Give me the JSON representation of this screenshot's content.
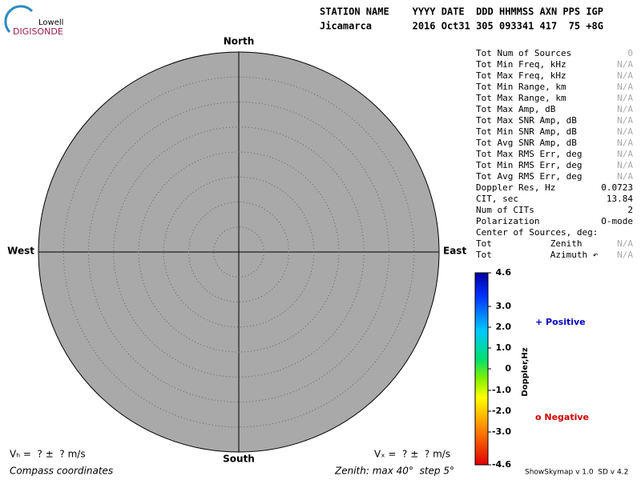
{
  "logo": {
    "top": "Lowell",
    "bottom": "DIGISONDE"
  },
  "header": {
    "labels_line": "STATION NAME    YYYY DATE  DDD HHMMSS AXN PPS IGP",
    "values_line": "Jicamarca       2016 Oct31 305 093341 417  75 +8G"
  },
  "compass": {
    "north": "North",
    "south": "South",
    "west": "West",
    "east": "East"
  },
  "stats": [
    [
      "Tot Num of Sources",
      "0"
    ],
    [
      "Tot Min Freq, kHz",
      "N/A"
    ],
    [
      "Tot Max Freq, kHz",
      "N/A"
    ],
    [
      "Tot Min Range, km",
      "N/A"
    ],
    [
      "Tot Max Range, km",
      "N/A"
    ],
    [
      "Tot Max Amp, dB",
      "N/A"
    ],
    [
      "Tot Max SNR Amp, dB",
      "N/A"
    ],
    [
      "Tot Min SNR Amp, dB",
      "N/A"
    ],
    [
      "Tot Avg SNR Amp, dB",
      "N/A"
    ],
    [
      "Tot Max RMS Err, deg",
      "N/A"
    ],
    [
      "Tot Min RMS Err, deg",
      "N/A"
    ],
    [
      "Tot Avg RMS Err, deg",
      "N/A"
    ],
    [
      "Doppler Res, Hz",
      "0.0723"
    ],
    [
      "CIT, sec",
      "13.84"
    ],
    [
      "Num of CITs",
      "2"
    ],
    [
      "Polarization",
      "O-mode"
    ],
    [
      "Center of Sources, deg:",
      null
    ],
    [
      "Tot           Zenith",
      "N/A"
    ],
    [
      "Tot           Azimuth ↶",
      "N/A"
    ]
  ],
  "colorbar": {
    "label": "Doppler,Hz",
    "ticks": [
      "4.6",
      "3.0",
      "2.0",
      "1.0",
      "0",
      "-1.0",
      "-2.0",
      "-3.0",
      "-4.6"
    ]
  },
  "legend": {
    "positive": "+ Positive",
    "negative": "o Negative"
  },
  "footer": {
    "vh": "Vₕ =  ? ±  ? m/s",
    "vz": "Vₓ =  ? ±  ? m/s",
    "coords": "Compass coordinates",
    "zenith": "Zenith: max 40°  step 5°",
    "version": "ShowSkymap v 1.0  SD v 4.2"
  }
}
